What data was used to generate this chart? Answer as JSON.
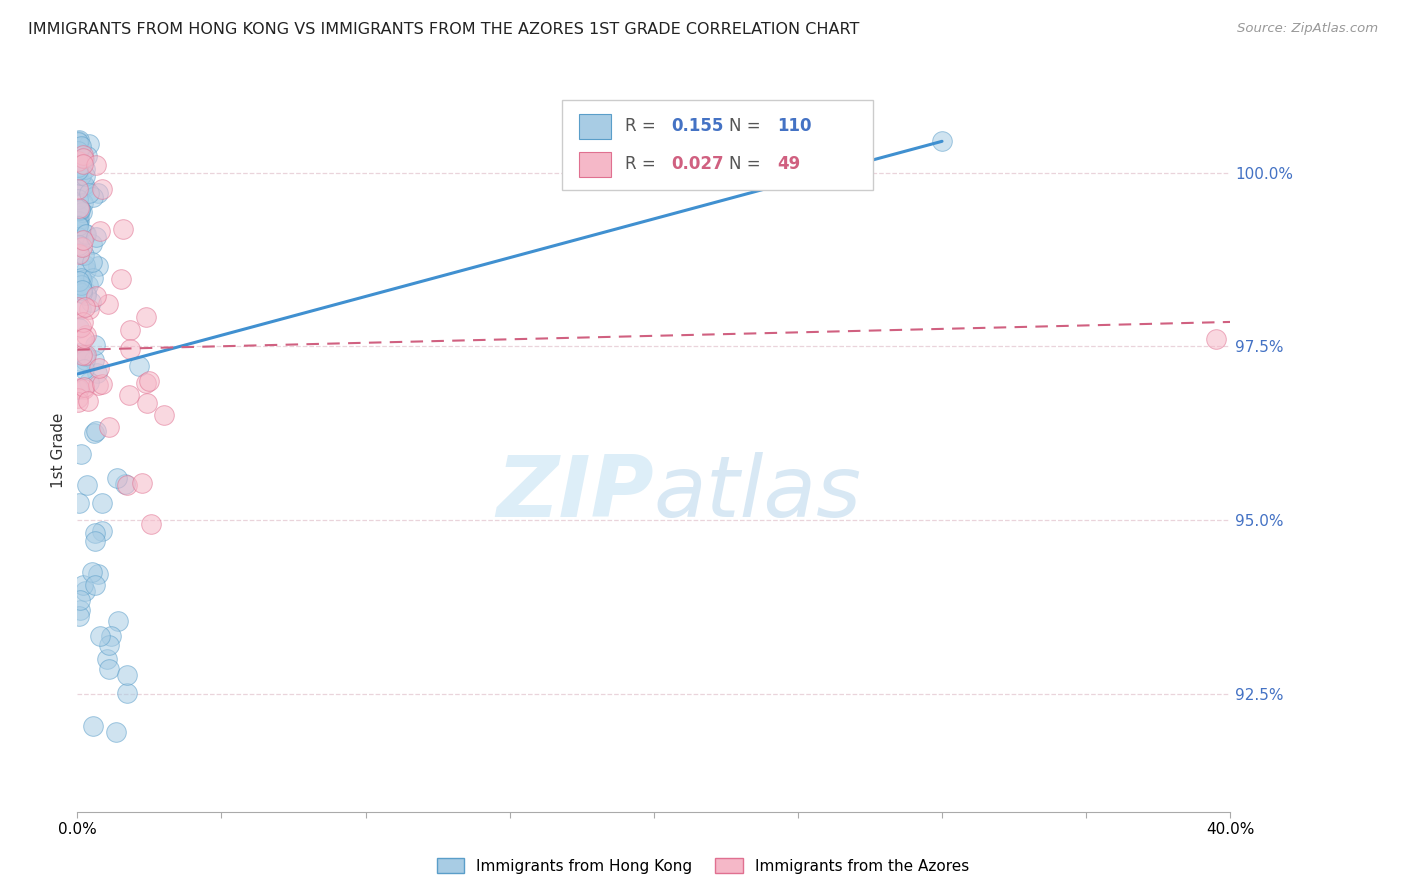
{
  "title": "IMMIGRANTS FROM HONG KONG VS IMMIGRANTS FROM THE AZORES 1ST GRADE CORRELATION CHART",
  "source": "Source: ZipAtlas.com",
  "ylabel": "1st Grade",
  "xlim": [
    0.0,
    40.0
  ],
  "ylim": [
    90.8,
    101.2
  ],
  "yticks": [
    92.5,
    95.0,
    97.5,
    100.0
  ],
  "ytick_labels": [
    "92.5%",
    "95.0%",
    "97.5%",
    "100.0%"
  ],
  "r_hk": 0.155,
  "n_hk": 110,
  "r_az": 0.027,
  "n_az": 49,
  "color_hk_fill": "#a8cce4",
  "color_hk_edge": "#5a9ec9",
  "color_az_fill": "#f5b8c8",
  "color_az_edge": "#e07090",
  "color_hk_line": "#4090d0",
  "color_az_line": "#d06080",
  "color_grid": "#e8d0d8",
  "watermark_color": "#ddeef8",
  "legend_label_hk": "Immigrants from Hong Kong",
  "legend_label_az": "Immigrants from the Azores",
  "hk_trend_x0": 0.0,
  "hk_trend_y0": 97.1,
  "hk_trend_x1": 30.0,
  "hk_trend_y1": 100.45,
  "az_trend_x0": 0.0,
  "az_trend_y0": 97.45,
  "az_trend_x1": 40.0,
  "az_trend_y1": 97.85
}
